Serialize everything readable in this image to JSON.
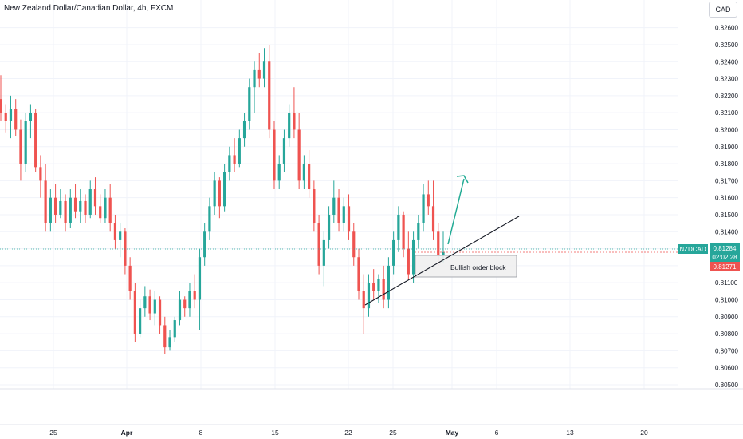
{
  "header": {
    "title": "New Zealand Dollar/Canadian Dollar, 4h, FXCM",
    "currency": "CAD"
  },
  "price_axis": {
    "labels": [
      "0.82600",
      "0.82500",
      "0.82400",
      "0.82300",
      "0.82200",
      "0.82100",
      "0.82000",
      "0.81900",
      "0.81800",
      "0.81700",
      "0.81600",
      "0.81500",
      "0.81400",
      "0.81300",
      "0.81200",
      "0.81100",
      "0.81000",
      "0.80900",
      "0.80800",
      "0.80700",
      "0.80600",
      "0.80500"
    ]
  },
  "time_axis": {
    "labels": [
      "25",
      "Apr",
      "8",
      "15",
      "22",
      "25",
      "May",
      "6",
      "13",
      "20"
    ]
  },
  "symbol_badge": {
    "symbol": "NZDCAD",
    "price": "0.81284",
    "countdown": "02:02:28",
    "bid": "0.81271"
  },
  "annotation": {
    "label": "Bullish order block"
  },
  "colors": {
    "up": "#26a69a",
    "down": "#ef5350",
    "grid": "#f0f3fa",
    "axis_text": "#131722",
    "trendline": "#131722",
    "arrow": "#22ab94"
  },
  "chart_data": {
    "type": "candlestick",
    "symbol": "NZDCAD",
    "timeframe": "4h",
    "source": "FXCM",
    "ylim": [
      0.805,
      0.8265
    ],
    "last_price": 0.81284,
    "bid": 0.81271,
    "order_block": {
      "low": 0.8113,
      "high": 0.8128
    },
    "candles": [
      {
        "o": 0.8218,
        "h": 0.8232,
        "l": 0.8205,
        "c": 0.821
      },
      {
        "o": 0.821,
        "h": 0.8215,
        "l": 0.8198,
        "c": 0.8205
      },
      {
        "o": 0.8205,
        "h": 0.822,
        "l": 0.8195,
        "c": 0.8212
      },
      {
        "o": 0.8212,
        "h": 0.8218,
        "l": 0.8196,
        "c": 0.82
      },
      {
        "o": 0.82,
        "h": 0.8206,
        "l": 0.817,
        "c": 0.818
      },
      {
        "o": 0.818,
        "h": 0.821,
        "l": 0.8175,
        "c": 0.8205
      },
      {
        "o": 0.8205,
        "h": 0.8215,
        "l": 0.8195,
        "c": 0.821
      },
      {
        "o": 0.821,
        "h": 0.8212,
        "l": 0.8175,
        "c": 0.8178
      },
      {
        "o": 0.8178,
        "h": 0.8185,
        "l": 0.816,
        "c": 0.817
      },
      {
        "o": 0.817,
        "h": 0.818,
        "l": 0.814,
        "c": 0.8145
      },
      {
        "o": 0.8145,
        "h": 0.8165,
        "l": 0.814,
        "c": 0.816
      },
      {
        "o": 0.816,
        "h": 0.8168,
        "l": 0.8145,
        "c": 0.815
      },
      {
        "o": 0.815,
        "h": 0.8165,
        "l": 0.8148,
        "c": 0.8158
      },
      {
        "o": 0.8158,
        "h": 0.8162,
        "l": 0.814,
        "c": 0.8145
      },
      {
        "o": 0.8145,
        "h": 0.8165,
        "l": 0.8142,
        "c": 0.816
      },
      {
        "o": 0.816,
        "h": 0.8168,
        "l": 0.8148,
        "c": 0.8152
      },
      {
        "o": 0.8152,
        "h": 0.8165,
        "l": 0.8145,
        "c": 0.8158
      },
      {
        "o": 0.8158,
        "h": 0.8162,
        "l": 0.8145,
        "c": 0.815
      },
      {
        "o": 0.815,
        "h": 0.817,
        "l": 0.8148,
        "c": 0.8165
      },
      {
        "o": 0.8165,
        "h": 0.8172,
        "l": 0.815,
        "c": 0.8155
      },
      {
        "o": 0.8155,
        "h": 0.8162,
        "l": 0.8145,
        "c": 0.8148
      },
      {
        "o": 0.8148,
        "h": 0.8165,
        "l": 0.8145,
        "c": 0.816
      },
      {
        "o": 0.816,
        "h": 0.8168,
        "l": 0.814,
        "c": 0.8145
      },
      {
        "o": 0.8145,
        "h": 0.815,
        "l": 0.813,
        "c": 0.8135
      },
      {
        "o": 0.8135,
        "h": 0.8145,
        "l": 0.8125,
        "c": 0.814
      },
      {
        "o": 0.814,
        "h": 0.8142,
        "l": 0.8115,
        "c": 0.812
      },
      {
        "o": 0.812,
        "h": 0.8125,
        "l": 0.81,
        "c": 0.8105
      },
      {
        "o": 0.8105,
        "h": 0.811,
        "l": 0.8075,
        "c": 0.808
      },
      {
        "o": 0.808,
        "h": 0.81,
        "l": 0.8078,
        "c": 0.8095
      },
      {
        "o": 0.8095,
        "h": 0.8108,
        "l": 0.809,
        "c": 0.8102
      },
      {
        "o": 0.8102,
        "h": 0.8106,
        "l": 0.8088,
        "c": 0.8092
      },
      {
        "o": 0.8092,
        "h": 0.8105,
        "l": 0.8085,
        "c": 0.81
      },
      {
        "o": 0.81,
        "h": 0.8102,
        "l": 0.808,
        "c": 0.8085
      },
      {
        "o": 0.8085,
        "h": 0.809,
        "l": 0.8068,
        "c": 0.8072
      },
      {
        "o": 0.8072,
        "h": 0.8082,
        "l": 0.807,
        "c": 0.8078
      },
      {
        "o": 0.8078,
        "h": 0.809,
        "l": 0.8075,
        "c": 0.8088
      },
      {
        "o": 0.8088,
        "h": 0.8105,
        "l": 0.8085,
        "c": 0.81
      },
      {
        "o": 0.81,
        "h": 0.8102,
        "l": 0.809,
        "c": 0.8095
      },
      {
        "o": 0.8095,
        "h": 0.811,
        "l": 0.809,
        "c": 0.8105
      },
      {
        "o": 0.8105,
        "h": 0.8115,
        "l": 0.8095,
        "c": 0.81
      },
      {
        "o": 0.81,
        "h": 0.813,
        "l": 0.8082,
        "c": 0.8125
      },
      {
        "o": 0.8125,
        "h": 0.8145,
        "l": 0.812,
        "c": 0.814
      },
      {
        "o": 0.814,
        "h": 0.816,
        "l": 0.8135,
        "c": 0.8155
      },
      {
        "o": 0.8155,
        "h": 0.8175,
        "l": 0.815,
        "c": 0.817
      },
      {
        "o": 0.817,
        "h": 0.8172,
        "l": 0.8148,
        "c": 0.8155
      },
      {
        "o": 0.8155,
        "h": 0.818,
        "l": 0.8152,
        "c": 0.8175
      },
      {
        "o": 0.8175,
        "h": 0.819,
        "l": 0.817,
        "c": 0.8185
      },
      {
        "o": 0.8185,
        "h": 0.8195,
        "l": 0.8175,
        "c": 0.818
      },
      {
        "o": 0.818,
        "h": 0.82,
        "l": 0.8178,
        "c": 0.8195
      },
      {
        "o": 0.8195,
        "h": 0.821,
        "l": 0.819,
        "c": 0.8205
      },
      {
        "o": 0.8205,
        "h": 0.823,
        "l": 0.82,
        "c": 0.8225
      },
      {
        "o": 0.8225,
        "h": 0.824,
        "l": 0.821,
        "c": 0.8235
      },
      {
        "o": 0.8235,
        "h": 0.8245,
        "l": 0.8225,
        "c": 0.823
      },
      {
        "o": 0.823,
        "h": 0.8248,
        "l": 0.8225,
        "c": 0.824
      },
      {
        "o": 0.824,
        "h": 0.825,
        "l": 0.8195,
        "c": 0.82
      },
      {
        "o": 0.82,
        "h": 0.8205,
        "l": 0.8165,
        "c": 0.817
      },
      {
        "o": 0.817,
        "h": 0.8185,
        "l": 0.8165,
        "c": 0.818
      },
      {
        "o": 0.818,
        "h": 0.82,
        "l": 0.8175,
        "c": 0.8195
      },
      {
        "o": 0.8195,
        "h": 0.8215,
        "l": 0.819,
        "c": 0.821
      },
      {
        "o": 0.821,
        "h": 0.8225,
        "l": 0.8195,
        "c": 0.82
      },
      {
        "o": 0.82,
        "h": 0.821,
        "l": 0.8165,
        "c": 0.817
      },
      {
        "o": 0.817,
        "h": 0.8185,
        "l": 0.8165,
        "c": 0.818
      },
      {
        "o": 0.818,
        "h": 0.8188,
        "l": 0.816,
        "c": 0.8165
      },
      {
        "o": 0.8165,
        "h": 0.817,
        "l": 0.814,
        "c": 0.8145
      },
      {
        "o": 0.8145,
        "h": 0.815,
        "l": 0.8115,
        "c": 0.812
      },
      {
        "o": 0.812,
        "h": 0.814,
        "l": 0.8108,
        "c": 0.8135
      },
      {
        "o": 0.8135,
        "h": 0.8155,
        "l": 0.813,
        "c": 0.815
      },
      {
        "o": 0.815,
        "h": 0.817,
        "l": 0.8145,
        "c": 0.816
      },
      {
        "o": 0.816,
        "h": 0.8165,
        "l": 0.814,
        "c": 0.8145
      },
      {
        "o": 0.8145,
        "h": 0.816,
        "l": 0.814,
        "c": 0.8155
      },
      {
        "o": 0.8155,
        "h": 0.8162,
        "l": 0.8135,
        "c": 0.814
      },
      {
        "o": 0.814,
        "h": 0.8145,
        "l": 0.812,
        "c": 0.8125
      },
      {
        "o": 0.8125,
        "h": 0.813,
        "l": 0.81,
        "c": 0.8105
      },
      {
        "o": 0.8105,
        "h": 0.8115,
        "l": 0.808,
        "c": 0.8095
      },
      {
        "o": 0.8095,
        "h": 0.8115,
        "l": 0.809,
        "c": 0.811
      },
      {
        "o": 0.811,
        "h": 0.8118,
        "l": 0.81,
        "c": 0.8105
      },
      {
        "o": 0.8105,
        "h": 0.8115,
        "l": 0.8098,
        "c": 0.8112
      },
      {
        "o": 0.8112,
        "h": 0.812,
        "l": 0.8095,
        "c": 0.81
      },
      {
        "o": 0.81,
        "h": 0.8125,
        "l": 0.8095,
        "c": 0.812
      },
      {
        "o": 0.812,
        "h": 0.814,
        "l": 0.8115,
        "c": 0.8135
      },
      {
        "o": 0.8135,
        "h": 0.8155,
        "l": 0.8128,
        "c": 0.815
      },
      {
        "o": 0.815,
        "h": 0.8152,
        "l": 0.8125,
        "c": 0.813
      },
      {
        "o": 0.813,
        "h": 0.814,
        "l": 0.8112,
        "c": 0.8115
      },
      {
        "o": 0.8115,
        "h": 0.814,
        "l": 0.811,
        "c": 0.8135
      },
      {
        "o": 0.8135,
        "h": 0.815,
        "l": 0.813,
        "c": 0.8145
      },
      {
        "o": 0.8145,
        "h": 0.8168,
        "l": 0.814,
        "c": 0.8162
      },
      {
        "o": 0.8162,
        "h": 0.817,
        "l": 0.815,
        "c": 0.8155
      },
      {
        "o": 0.8155,
        "h": 0.817,
        "l": 0.8135,
        "c": 0.814
      },
      {
        "o": 0.814,
        "h": 0.8145,
        "l": 0.812,
        "c": 0.8126
      },
      {
        "o": 0.8126,
        "h": 0.814,
        "l": 0.8122,
        "c": 0.8128
      }
    ],
    "annotations": [
      "Bullish order block",
      "ascending trendline",
      "upward arrow"
    ]
  }
}
